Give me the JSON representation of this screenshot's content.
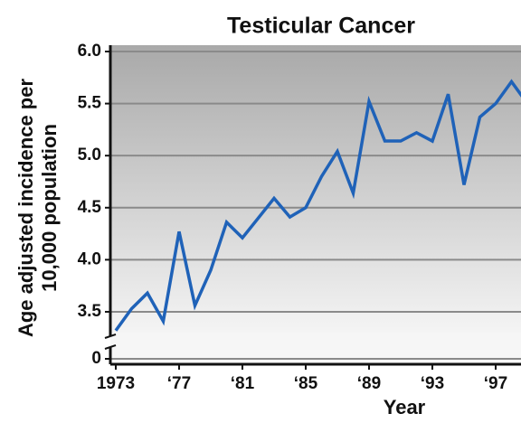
{
  "chart_data": {
    "type": "line",
    "title": "Testicular Cancer",
    "xlabel": "Year",
    "ylabel": [
      "Age adjusted incidence per",
      "10,000 population"
    ],
    "x": [
      1973,
      1974,
      1975,
      1976,
      1977,
      1978,
      1979,
      1980,
      1981,
      1982,
      1983,
      1984,
      1985,
      1986,
      1987,
      1988,
      1989,
      1990,
      1991,
      1992,
      1993,
      1994,
      1995,
      1996,
      1997,
      1998,
      1999
    ],
    "series": [
      {
        "name": "Testicular Cancer",
        "color": "#1f62b8",
        "values": [
          3.32,
          3.53,
          3.68,
          3.41,
          4.27,
          3.56,
          3.9,
          4.36,
          4.21,
          4.4,
          4.59,
          4.41,
          4.5,
          4.8,
          5.04,
          4.64,
          5.52,
          5.14,
          5.14,
          5.22,
          5.14,
          5.59,
          4.72,
          5.37,
          5.5,
          5.71,
          5.5
        ]
      }
    ],
    "xlim": [
      1973,
      1998.6
    ],
    "xticks": [
      {
        "value": 1973,
        "label": "1973"
      },
      {
        "value": 1977,
        "label": "‘77"
      },
      {
        "value": 1981,
        "label": "‘81"
      },
      {
        "value": 1985,
        "label": "‘85"
      },
      {
        "value": 1989,
        "label": "‘89"
      },
      {
        "value": 1993,
        "label": "‘93"
      },
      {
        "value": 1997,
        "label": "‘97"
      }
    ],
    "ylim": [
      3.3,
      6.0
    ],
    "yticks": [
      0,
      {
        "value": 3.5,
        "label": "3.5"
      },
      {
        "value": 4.0,
        "label": "4.0"
      },
      {
        "value": 4.5,
        "label": "4.5"
      },
      {
        "value": 5.0,
        "label": "5.0"
      },
      {
        "value": 5.5,
        "label": "5.5"
      },
      {
        "value": 6.0,
        "label": "6.0"
      }
    ],
    "grid": true
  }
}
